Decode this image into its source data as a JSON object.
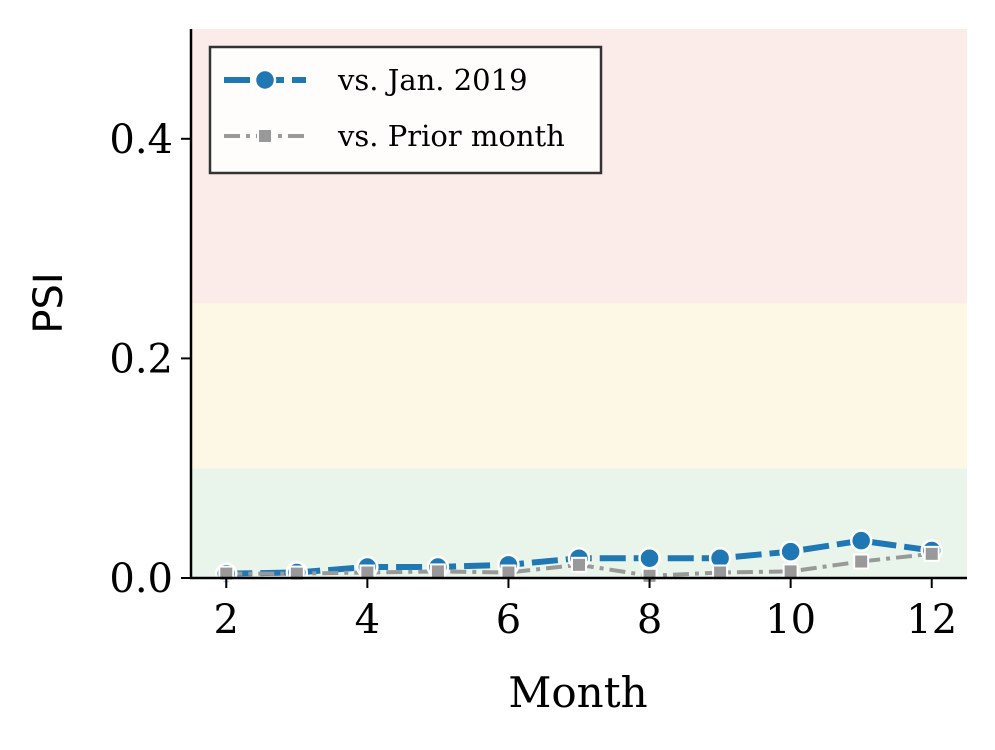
{
  "chart_data": {
    "type": "line",
    "title": "",
    "xlabel": "Month",
    "ylabel": "PSI",
    "xlim": [
      1.5,
      12.5
    ],
    "ylim": [
      0,
      0.5
    ],
    "x_ticks": [
      2,
      4,
      6,
      8,
      10,
      12
    ],
    "y_ticks": [
      0.0,
      0.2,
      0.4
    ],
    "y_tick_labels": [
      "0.0",
      "0.2",
      "0.4"
    ],
    "grid": false,
    "legend_position": "top-left",
    "bands": [
      {
        "from": 0.0,
        "to": 0.1,
        "color": "#e9f5ea"
      },
      {
        "from": 0.1,
        "to": 0.25,
        "color": "#fdf7e6"
      },
      {
        "from": 0.25,
        "to": 0.5,
        "color": "#fbecea"
      }
    ],
    "x": [
      2,
      3,
      4,
      5,
      6,
      7,
      8,
      9,
      10,
      11,
      12
    ],
    "series": [
      {
        "name": "vs. Jan. 2019",
        "color": "#1f77b4",
        "marker": "circle",
        "line_style": "dashed",
        "values": [
          0.004,
          0.005,
          0.01,
          0.01,
          0.012,
          0.018,
          0.018,
          0.018,
          0.024,
          0.034,
          0.025
        ]
      },
      {
        "name": "vs. Prior month",
        "color": "#999999",
        "marker": "square",
        "line_style": "dashdot",
        "values": [
          0.004,
          0.004,
          0.005,
          0.006,
          0.005,
          0.012,
          0.002,
          0.005,
          0.006,
          0.015,
          0.022
        ]
      }
    ]
  }
}
